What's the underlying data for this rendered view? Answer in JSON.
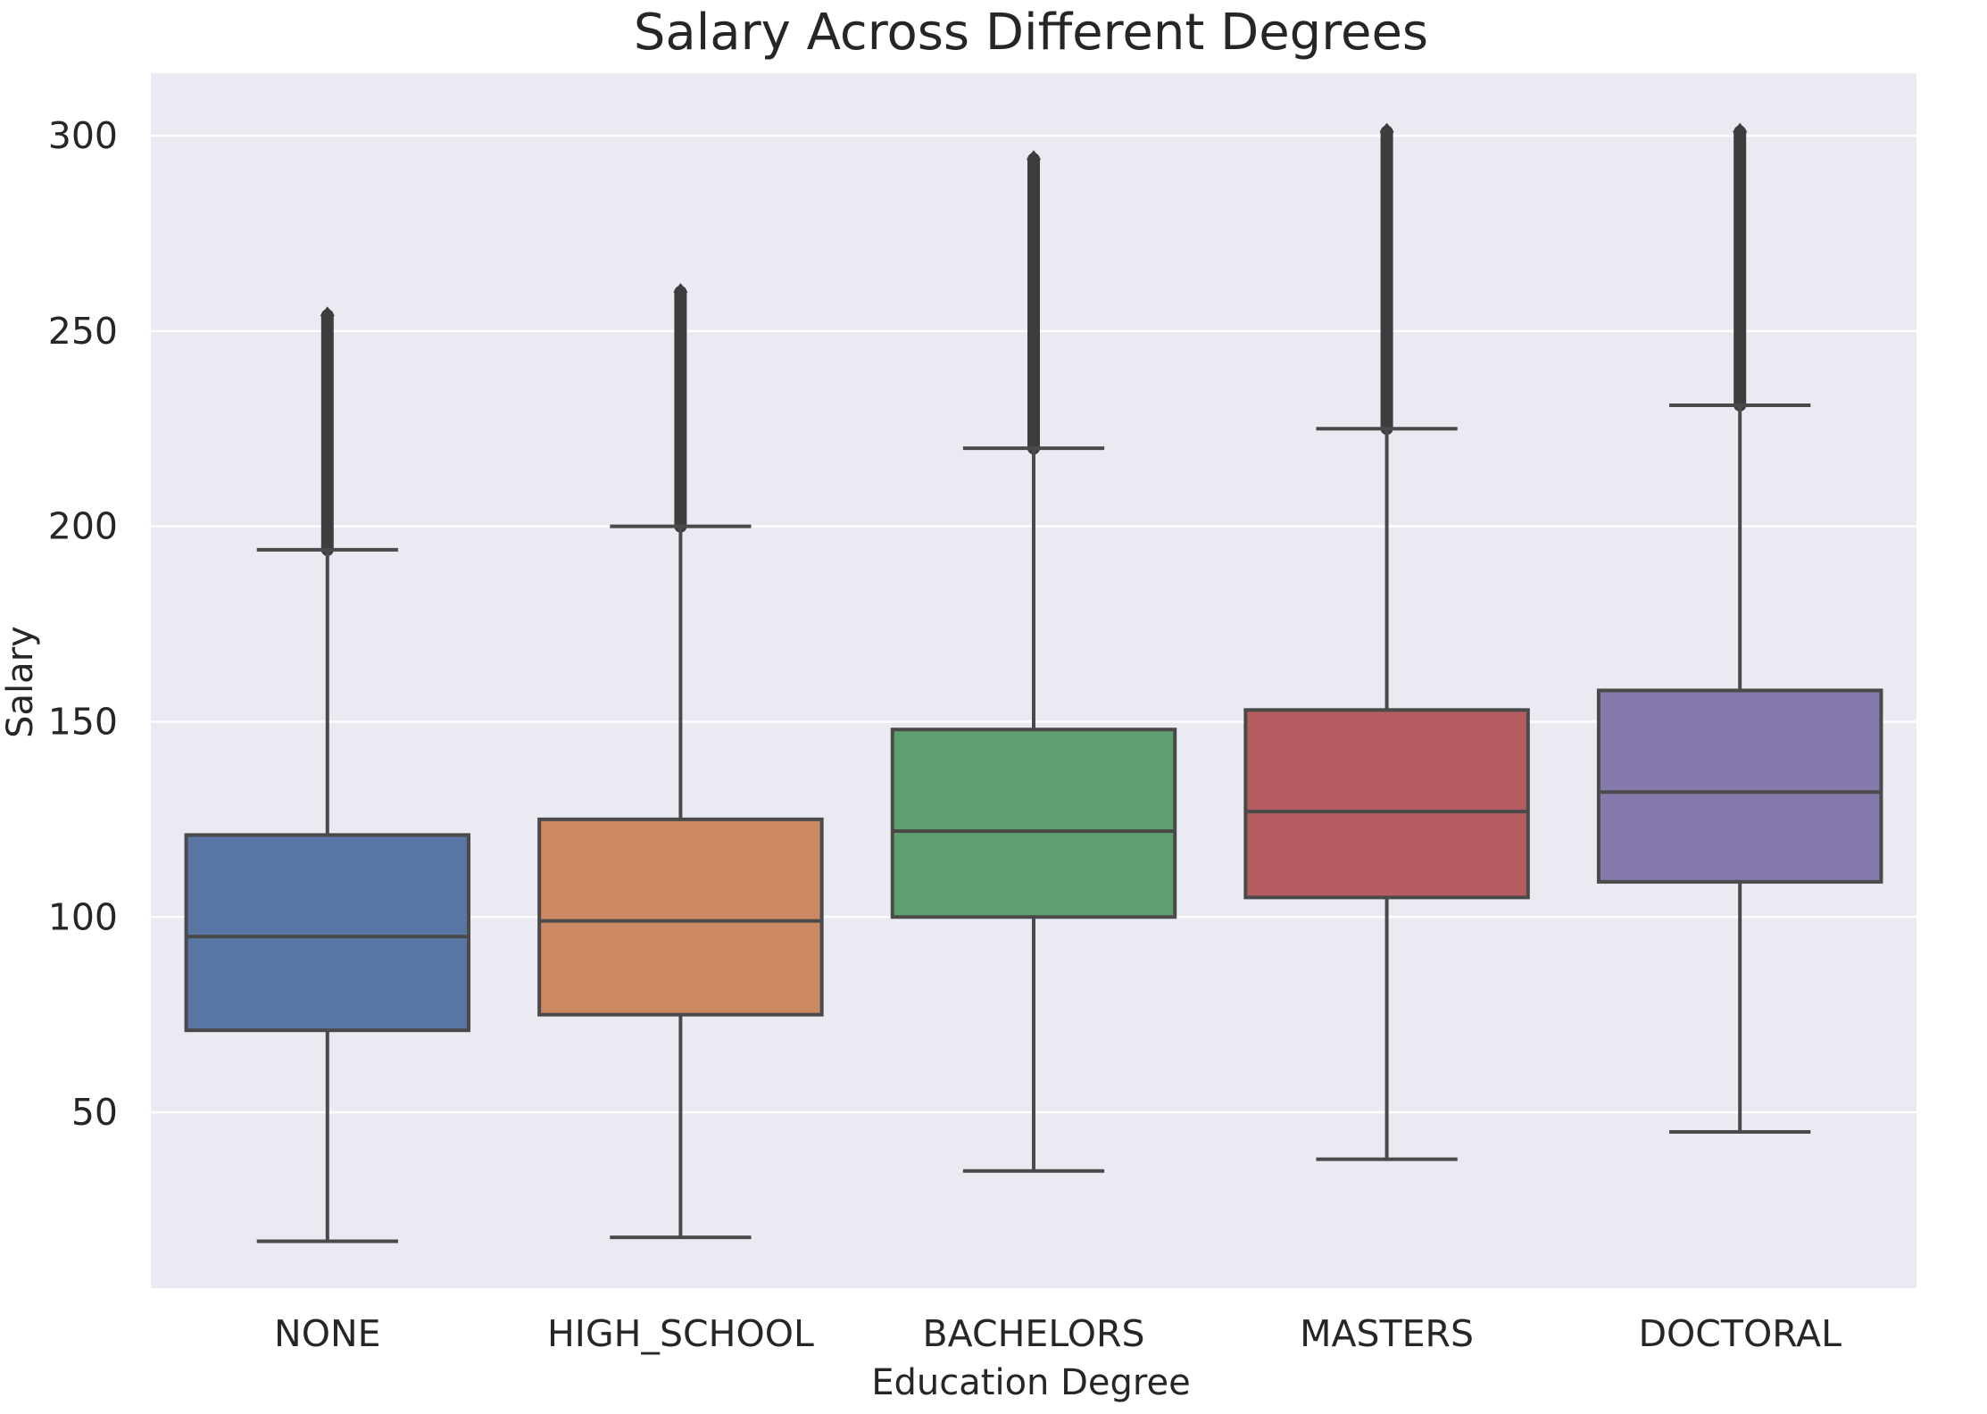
{
  "chart_data": {
    "type": "box",
    "title": "Salary Across Different Degrees",
    "xlabel": "Education Degree",
    "ylabel": "Salary",
    "ylim": [
      5,
      316
    ],
    "yticks": [
      50,
      100,
      150,
      200,
      250,
      300
    ],
    "grid": true,
    "categories": [
      "NONE",
      "HIGH_SCHOOL",
      "BACHELORS",
      "MASTERS",
      "DOCTORAL"
    ],
    "colors": [
      "#5975a4",
      "#cc8963",
      "#5f9e6e",
      "#b55d60",
      "#857aab"
    ],
    "boxes": [
      {
        "category": "NONE",
        "whisker_low": 17,
        "q1": 71,
        "median": 95,
        "q3": 121,
        "whisker_high": 194,
        "outlier_max": 254
      },
      {
        "category": "HIGH_SCHOOL",
        "whisker_low": 18,
        "q1": 75,
        "median": 99,
        "q3": 125,
        "whisker_high": 200,
        "outlier_max": 260
      },
      {
        "category": "BACHELORS",
        "whisker_low": 35,
        "q1": 100,
        "median": 122,
        "q3": 148,
        "whisker_high": 220,
        "outlier_max": 294
      },
      {
        "category": "MASTERS",
        "whisker_low": 38,
        "q1": 105,
        "median": 127,
        "q3": 153,
        "whisker_high": 225,
        "outlier_max": 301
      },
      {
        "category": "DOCTORAL",
        "whisker_low": 45,
        "q1": 109,
        "median": 132,
        "q3": 158,
        "whisker_high": 231,
        "outlier_max": 301
      }
    ]
  }
}
